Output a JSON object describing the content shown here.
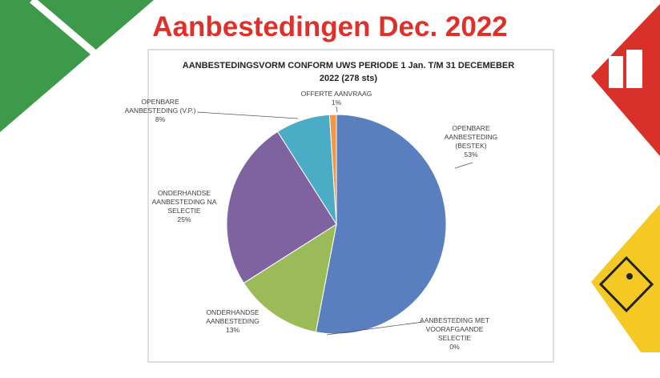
{
  "slide": {
    "title": "Aanbestedingen Dec. 2022"
  },
  "chart_data": {
    "type": "pie",
    "title": "AANBESTEDINGSVORM CONFORM UWS PERIODE 1 Jan. T/M 31 DECEMEBER 2022 (278 sts)",
    "categories": [
      "OPENBARE AANBESTEDING (BESTEK)",
      "AANBESTEDING MET VOORAFGAANDE SELECTIE",
      "ONDERHANDSE AANBESTEDING",
      "ONDERHANDSE AANBESTEDING NA SELECTIE",
      "OPENBARE AANBESTEDING (V.P.)",
      "OFFERTE AANVRAAG"
    ],
    "values": [
      53,
      0,
      13,
      25,
      8,
      1
    ],
    "value_labels": [
      "53%",
      "0%",
      "13%",
      "25%",
      "8%",
      "1%"
    ],
    "colors": [
      "#5a7fbf",
      "#c0504d",
      "#9bbb59",
      "#7f63a1",
      "#4bacc6",
      "#f79646"
    ]
  }
}
